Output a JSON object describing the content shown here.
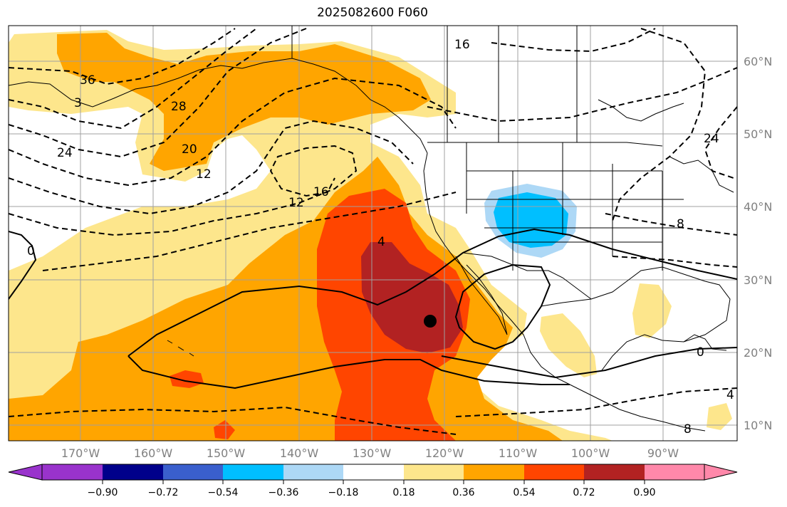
{
  "title": "2025082600 F060",
  "map": {
    "lon_ticks": [
      "170°W",
      "160°W",
      "150°W",
      "140°W",
      "130°W",
      "120°W",
      "110°W",
      "100°W",
      "90°W"
    ],
    "lat_ticks": [
      "60°N",
      "50°N",
      "40°N",
      "30°N",
      "20°N",
      "10°N"
    ],
    "contour_labels": [
      "16",
      "36",
      "3",
      "28",
      "20",
      "24",
      "12",
      "12",
      "16",
      "4",
      "0",
      "0",
      "8",
      "24",
      "4",
      "8"
    ],
    "colors": {
      "pos_1": "#fde68c",
      "pos_2": "#ffa500",
      "pos_3": "#ff4500",
      "pos_4": "#b22222",
      "neg_1": "#add8f6",
      "neg_2": "#00bfff"
    }
  },
  "colorbar": {
    "labels": [
      "−0.90",
      "−0.72",
      "−0.54",
      "−0.36",
      "−0.18",
      "0.18",
      "0.36",
      "0.54",
      "0.72",
      "0.90"
    ],
    "colors": [
      "#9933cc",
      "#00008b",
      "#3a5fcd",
      "#00bfff",
      "#add8f6",
      "#ffffff",
      "#fde68c",
      "#ffa500",
      "#ff4500",
      "#b22222",
      "#ff88aa"
    ]
  }
}
